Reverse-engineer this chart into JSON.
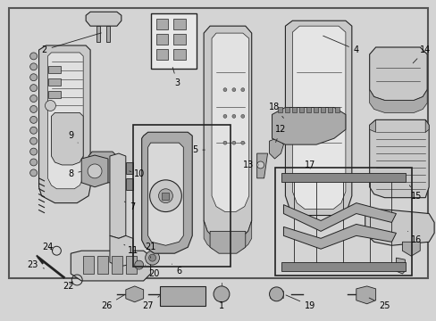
{
  "background_color": "#d4d4d4",
  "border_color": "#444444",
  "line_color": "#222222",
  "label_color": "#000000",
  "font_size": 7.0,
  "fig_w": 4.89,
  "fig_h": 3.6,
  "dpi": 100
}
